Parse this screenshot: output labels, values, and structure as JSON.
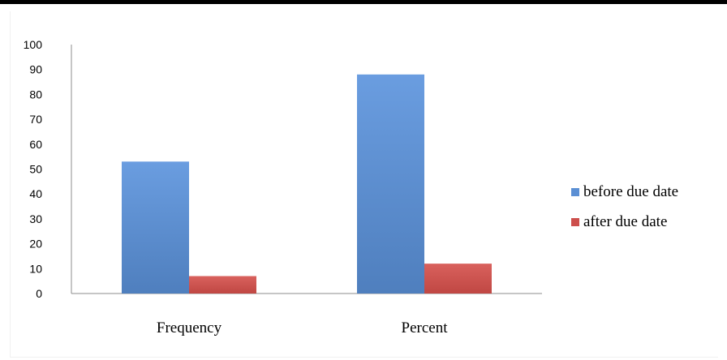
{
  "chart_data": {
    "type": "bar",
    "title": "",
    "xlabel": "",
    "ylabel": "",
    "categories": [
      "Frequency",
      "Percent"
    ],
    "series": [
      {
        "name": "before due date",
        "values": [
          53,
          88
        ],
        "color": "#5b8fd4"
      },
      {
        "name": "after due date",
        "values": [
          7,
          12
        ],
        "color": "#cd4f4c"
      }
    ],
    "ylim": [
      0,
      100
    ],
    "yticks": [
      0,
      10,
      20,
      30,
      40,
      50,
      60,
      70,
      80,
      90,
      100
    ],
    "grid": false,
    "legend": "right"
  }
}
